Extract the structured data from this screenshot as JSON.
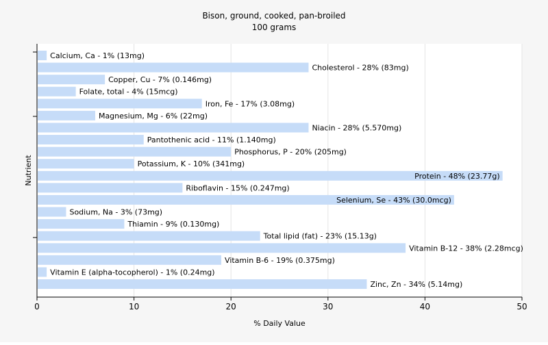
{
  "chart_data": {
    "type": "bar",
    "orientation": "horizontal",
    "title": "Bison, ground, cooked, pan-broiled",
    "subtitle": "100 grams",
    "xlabel": "% Daily Value",
    "ylabel": "Nutrient",
    "xlim": [
      0,
      50
    ],
    "xticks": [
      0,
      10,
      20,
      30,
      40,
      50
    ],
    "grid": true,
    "bar_color": "#c6dcf8",
    "categories": [
      "Calcium, Ca",
      "Cholesterol",
      "Copper, Cu",
      "Folate, total",
      "Iron, Fe",
      "Magnesium, Mg",
      "Niacin",
      "Pantothenic acid",
      "Phosphorus, P",
      "Potassium, K",
      "Protein",
      "Riboflavin",
      "Selenium, Se",
      "Sodium, Na",
      "Thiamin",
      "Total lipid (fat)",
      "Vitamin B-12",
      "Vitamin B-6",
      "Vitamin E (alpha-tocopherol)",
      "Zinc, Zn"
    ],
    "values": [
      1,
      28,
      7,
      4,
      17,
      6,
      28,
      11,
      20,
      10,
      48,
      15,
      43,
      3,
      9,
      23,
      38,
      19,
      1,
      34
    ],
    "labels": [
      "Calcium, Ca - 1% (13mg)",
      "Cholesterol - 28% (83mg)",
      "Copper, Cu - 7% (0.146mg)",
      "Folate, total - 4% (15mcg)",
      "Iron, Fe - 17% (3.08mg)",
      "Magnesium, Mg - 6% (22mg)",
      "Niacin - 28% (5.570mg)",
      "Pantothenic acid - 11% (1.140mg)",
      "Phosphorus, P - 20% (205mg)",
      "Potassium, K - 10% (341mg)",
      "Protein - 48% (23.77g)",
      "Riboflavin - 15% (0.247mg)",
      "Selenium, Se - 43% (30.0mcg)",
      "Sodium, Na - 3% (73mg)",
      "Thiamin - 9% (0.130mg)",
      "Total lipid (fat) - 23% (15.13g)",
      "Vitamin B-12 - 38% (2.28mcg)",
      "Vitamin B-6 - 19% (0.375mg)",
      "Vitamin E (alpha-tocopherol) - 1% (0.24mg)",
      "Zinc, Zn - 34% (5.14mg)"
    ],
    "inside_labels": [
      "Protein",
      "Selenium, Se"
    ]
  }
}
